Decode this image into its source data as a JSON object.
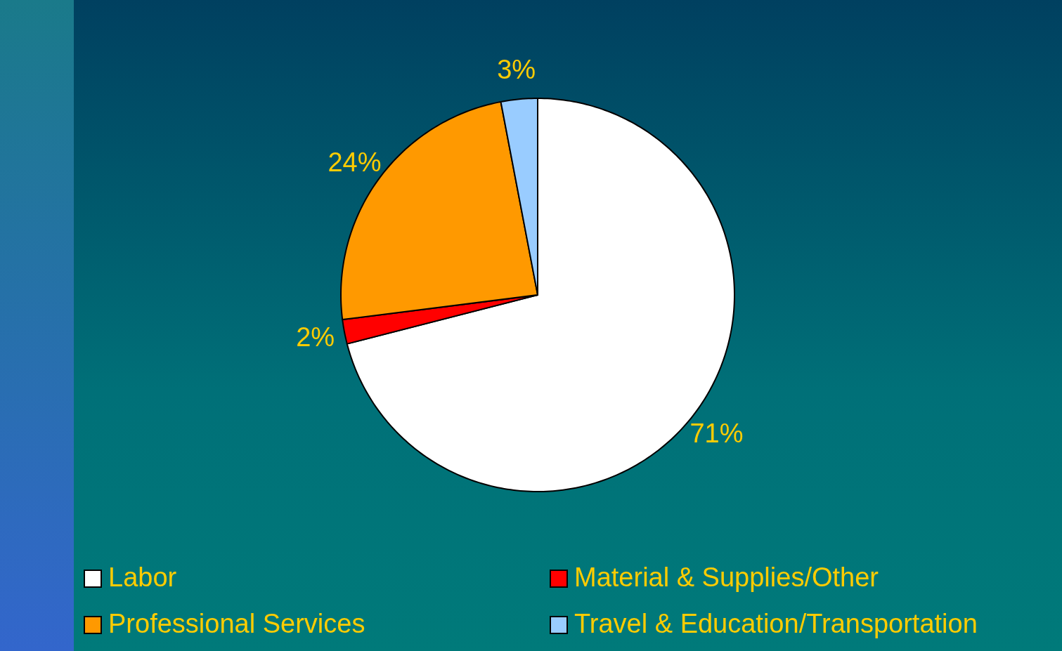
{
  "chart_data": {
    "type": "pie",
    "categories": [
      "Labor",
      "Material & Supplies/Other",
      "Professional Services",
      "Travel & Education/Transportation"
    ],
    "values": [
      71,
      2,
      24,
      3
    ],
    "colors": [
      "#ffffff",
      "#ff0000",
      "#ff9900",
      "#99ccff"
    ],
    "value_labels": [
      "71%",
      "2%",
      "24%",
      "3%"
    ],
    "legend": "bottom"
  }
}
